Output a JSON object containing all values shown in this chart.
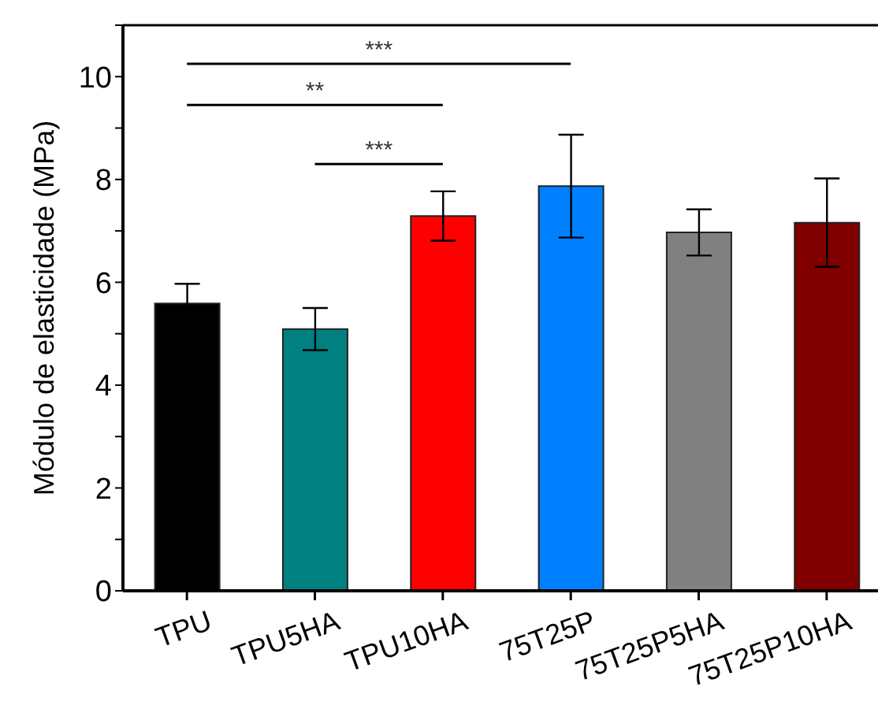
{
  "chart_data": {
    "type": "bar",
    "ylabel": "Módulo de elasticidade (MPa)",
    "categories": [
      "TPU",
      "TPU5HA",
      "TPU10HA",
      "75T25P",
      "75T25P5HA",
      "75T25P10HA"
    ],
    "values": [
      5.59,
      5.09,
      7.29,
      7.87,
      6.97,
      7.16
    ],
    "errors": [
      0.38,
      0.41,
      0.48,
      1.0,
      0.45,
      0.86
    ],
    "colors": [
      "#000000",
      "#008080",
      "#ff0000",
      "#0080ff",
      "#808080",
      "#800000"
    ],
    "ylim": [
      0,
      11
    ],
    "yticks": [
      0,
      {
        "value": 1,
        "label": null
      },
      2,
      {
        "value": 3,
        "label": null
      },
      4,
      {
        "value": 5,
        "label": null
      },
      6,
      {
        "value": 7,
        "label": null
      },
      8,
      {
        "value": 9,
        "label": null
      },
      10,
      {
        "value": 11,
        "label": null
      }
    ],
    "annotations": [
      "***",
      "**",
      "***"
    ],
    "grid": false,
    "legend": false
  }
}
